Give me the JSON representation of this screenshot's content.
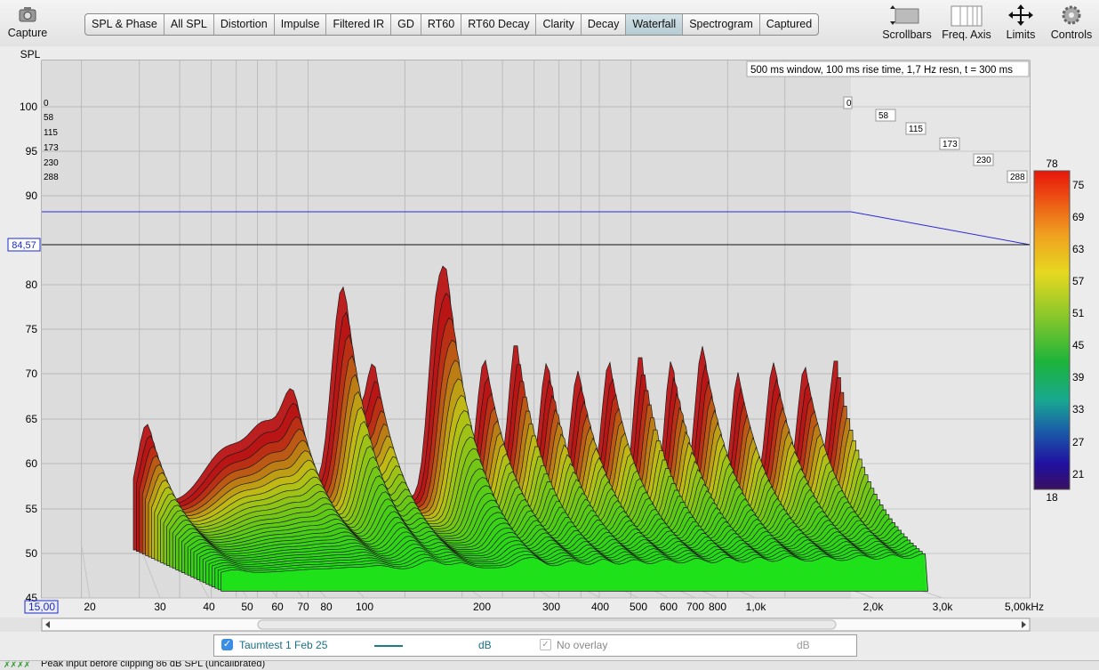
{
  "toolbar": {
    "capture": "Capture",
    "tabs": [
      "SPL & Phase",
      "All SPL",
      "Distortion",
      "Impulse",
      "Filtered IR",
      "GD",
      "RT60",
      "RT60 Decay",
      "Clarity",
      "Decay",
      "Waterfall",
      "Spectrogram",
      "Captured"
    ],
    "selected_tab": 10,
    "tools": [
      "Scrollbars",
      "Freq. Axis",
      "Limits",
      "Controls"
    ]
  },
  "graph": {
    "y_axis_label": "SPL",
    "y_ticks": [
      "100",
      "95",
      "90",
      "80",
      "75",
      "70",
      "65",
      "60",
      "55",
      "50",
      "45"
    ],
    "cursor_value": "84,57",
    "x_ticks": [
      "15,00",
      "20",
      "30",
      "40",
      "50",
      "60",
      "70",
      "80",
      "100",
      "200",
      "300",
      "400",
      "500",
      "600",
      "700",
      "800",
      "1,0k",
      "2,0k",
      "3,0k",
      "5,00kHz"
    ],
    "info": "500 ms window, 100 ms rise time,  1,7 Hz resn, t = 300 ms",
    "time_ticks": [
      "0",
      "58",
      "115",
      "173",
      "230",
      "288"
    ],
    "colorbar_ticks": [
      "78",
      "75",
      "69",
      "63",
      "57",
      "51",
      "45",
      "39",
      "33",
      "27",
      "21",
      "18"
    ]
  },
  "legend": {
    "measurement": "Taumtest 1 Feb 25",
    "unit": "dB",
    "overlay": "No overlay",
    "overlay_unit": "dB"
  },
  "status": "Peak input before clipping 86 dB SPL (uncalibrated)"
}
